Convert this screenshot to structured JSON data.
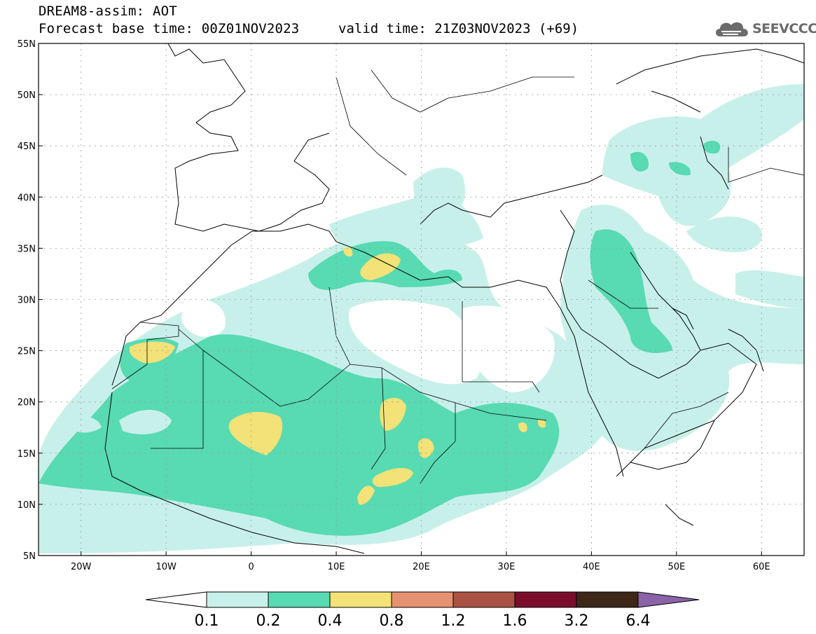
{
  "header": {
    "title_line1": "DREAM8-assim: AOT",
    "title_line2": "Forecast base time: 00Z01NOV2023",
    "valid_time": "valid time: 21Z03NOV2023 (+69)"
  },
  "logo": {
    "text": "SEEVCCC",
    "icon": "cloud-icon"
  },
  "map": {
    "lat_labels": [
      "55N",
      "50N",
      "45N",
      "40N",
      "35N",
      "30N",
      "25N",
      "20N",
      "15N",
      "10N",
      "5N"
    ],
    "lon_labels": [
      "20W",
      "10W",
      "0",
      "10E",
      "20E",
      "30E",
      "40E",
      "50E",
      "60E"
    ],
    "lat_range": [
      5,
      55
    ],
    "lon_range": [
      -25,
      65
    ],
    "grid": "dotted"
  },
  "colorbar": {
    "labels": [
      "0.1",
      "0.2",
      "0.4",
      "0.8",
      "1.2",
      "1.6",
      "3.2",
      "6.4"
    ],
    "colors": [
      "#c8f0ea",
      "#58dab2",
      "#f2e277",
      "#e69170",
      "#aa5344",
      "#7a0c2c",
      "#3d2718"
    ],
    "under_color": "#ffffff",
    "over_color": "#8b63a8"
  }
}
